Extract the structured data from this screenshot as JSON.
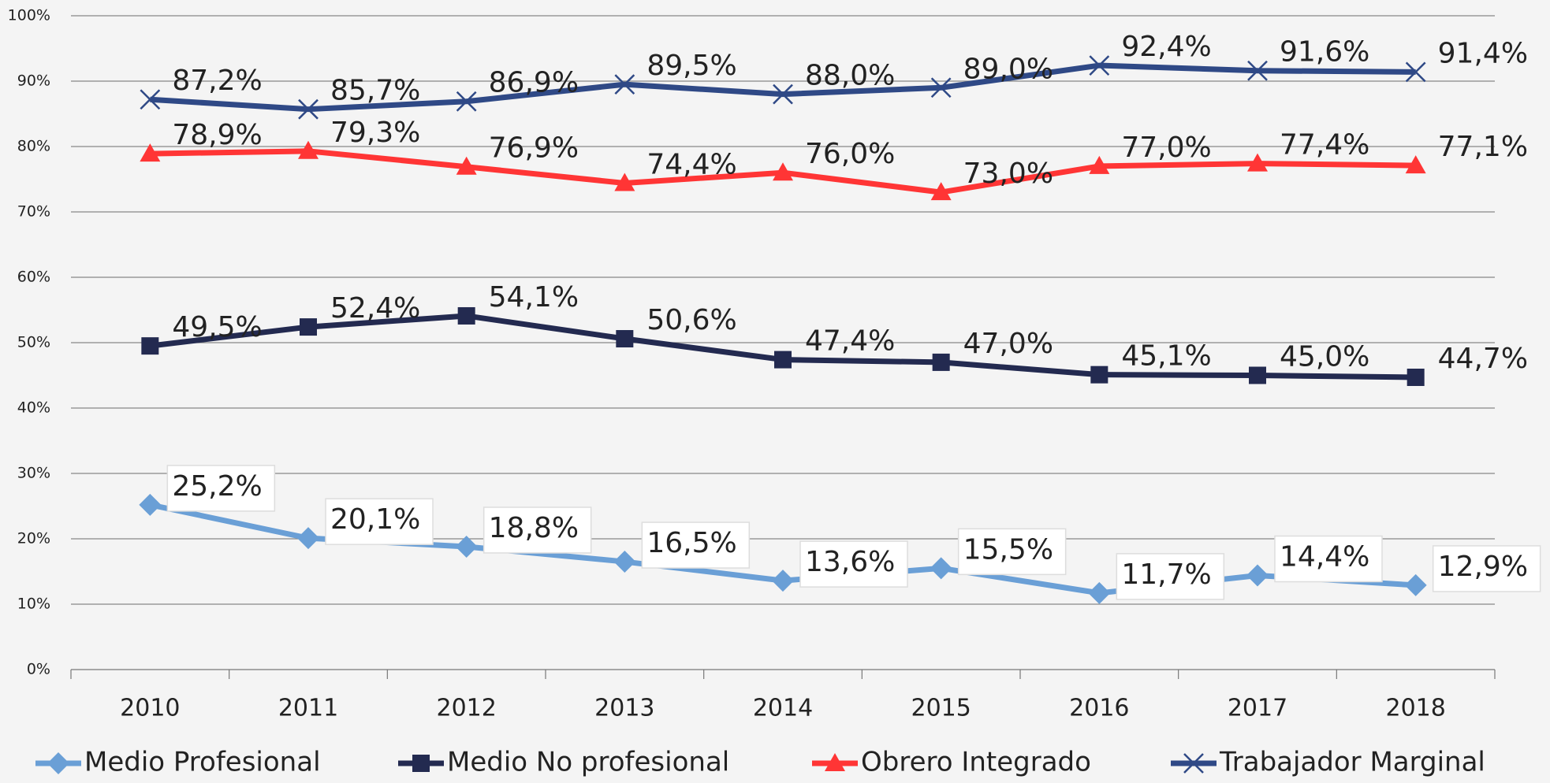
{
  "chart_data": {
    "type": "line",
    "categories": [
      "2010",
      "2011",
      "2012",
      "2013",
      "2014",
      "2015",
      "2016",
      "2017",
      "2018"
    ],
    "ylim": [
      0,
      100
    ],
    "yticks": [
      {
        "value": 0,
        "label": "0%"
      },
      {
        "value": 10,
        "label": "10%"
      },
      {
        "value": 20,
        "label": "20%"
      },
      {
        "value": 30,
        "label": "30%"
      },
      {
        "value": 40,
        "label": "40%"
      },
      {
        "value": 50,
        "label": "50%"
      },
      {
        "value": 60,
        "label": "60%"
      },
      {
        "value": 70,
        "label": "70%"
      },
      {
        "value": 80,
        "label": "80%"
      },
      {
        "value": 90,
        "label": "90%"
      },
      {
        "value": 100,
        "label": "100%"
      }
    ],
    "grid": true,
    "legend": "bottom",
    "series": [
      {
        "name": "Medio Profesional",
        "color": "#6a9fd6",
        "marker": "diamond",
        "values": [
          25.2,
          20.1,
          18.8,
          16.5,
          13.6,
          15.5,
          11.7,
          14.4,
          12.9
        ],
        "value_labels": [
          "25,2%",
          "20,1%",
          "18,8%",
          "16,5%",
          "13,6%",
          "15,5%",
          "11,7%",
          "14,4%",
          "12,9%"
        ]
      },
      {
        "name": "Medio No profesional",
        "color": "#232a50",
        "marker": "square",
        "values": [
          49.5,
          52.4,
          54.1,
          50.6,
          47.4,
          47.0,
          45.1,
          45.0,
          44.7
        ],
        "value_labels": [
          "49,5%",
          "52,4%",
          "54,1%",
          "50,6%",
          "47,4%",
          "47,0%",
          "45,1%",
          "45,0%",
          "44,7%"
        ]
      },
      {
        "name": "Obrero Integrado",
        "color": "#ff3535",
        "marker": "triangle",
        "values": [
          78.9,
          79.3,
          76.9,
          74.4,
          76.0,
          73.0,
          77.0,
          77.4,
          77.1
        ],
        "value_labels": [
          "78,9%",
          "79,3%",
          "76,9%",
          "74,4%",
          "76,0%",
          "73,0%",
          "77,0%",
          "77,4%",
          "77,1%"
        ]
      },
      {
        "name": "Trabajador Marginal",
        "color": "#2f4986",
        "marker": "x",
        "values": [
          87.2,
          85.7,
          86.9,
          89.5,
          88.0,
          89.0,
          92.4,
          91.6,
          91.4
        ],
        "value_labels": [
          "87,2%",
          "85,7%",
          "86,9%",
          "89,5%",
          "88,0%",
          "89,0%",
          "92,4%",
          "91,6%",
          "91,4%"
        ]
      }
    ]
  }
}
